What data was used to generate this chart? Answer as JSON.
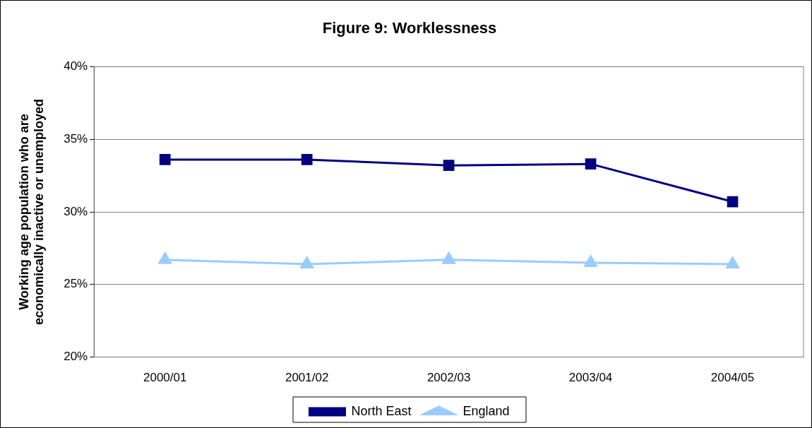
{
  "chart_data": {
    "type": "line",
    "title": "Figure 9: Worklessness",
    "ylabel": "Working age population who are\neconomically inactive or unemployed",
    "categories": [
      "2000/01",
      "2001/02",
      "2002/03",
      "2003/04",
      "2004/05"
    ],
    "series": [
      {
        "name": "North East",
        "color": "#000080",
        "marker": "square",
        "values": [
          33.6,
          33.6,
          33.2,
          33.3,
          30.7
        ]
      },
      {
        "name": "England",
        "color": "#99ccff",
        "marker": "triangle",
        "values": [
          26.7,
          26.4,
          26.7,
          26.5,
          26.4
        ]
      }
    ],
    "ylim": [
      20,
      40
    ],
    "yticks": [
      {
        "value": 20,
        "label": "20%"
      },
      {
        "value": 25,
        "label": "25%"
      },
      {
        "value": 30,
        "label": "30%"
      },
      {
        "value": 35,
        "label": "35%"
      },
      {
        "value": 40,
        "label": "40%"
      }
    ],
    "grid": "y",
    "legend": "bottom"
  }
}
